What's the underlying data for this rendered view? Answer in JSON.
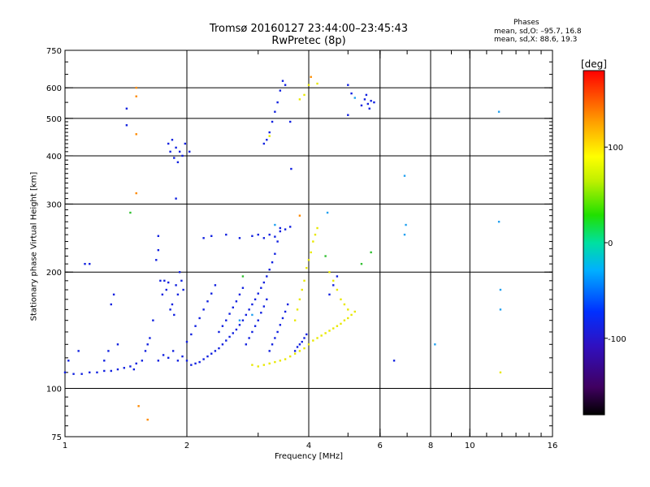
{
  "chart_data": {
    "type": "scatter",
    "title": "Tromsø 20160127 23:44:00–23:45:43",
    "subtitle": "RwPretec (8p)",
    "phase_info": {
      "heading": "Phases",
      "line_o": "mean, sd,O: –95.7, 16.8",
      "line_x": "mean, sd,X:  88.6, 19.3"
    },
    "xlabel": "Frequency [MHz]",
    "ylabel": "Stationary phase Virtual Height [km]",
    "x_scale": "log",
    "y_scale": "log",
    "xlim": [
      1,
      16
    ],
    "ylim": [
      75,
      750
    ],
    "grid": true,
    "x_ticks": [
      1,
      2,
      4,
      6,
      8,
      10,
      16
    ],
    "y_ticks": [
      75,
      100,
      200,
      300,
      400,
      500,
      600,
      750
    ],
    "x_grid": [
      2,
      4,
      6,
      8,
      10
    ],
    "y_grid": [
      100,
      200,
      300,
      400,
      500,
      600
    ],
    "colorbar": {
      "label": "[deg]",
      "min": -180,
      "max": 180,
      "ticks": [
        -100,
        0,
        100
      ],
      "colormap": "rainbow"
    },
    "series": [
      {
        "phase": -95,
        "color": "#1020e0",
        "points": [
          [
            1.0,
            110
          ],
          [
            1.05,
            109
          ],
          [
            1.1,
            109
          ],
          [
            1.15,
            110
          ],
          [
            1.2,
            110
          ],
          [
            1.25,
            111
          ],
          [
            1.3,
            111
          ],
          [
            1.35,
            112
          ],
          [
            1.4,
            113
          ],
          [
            1.45,
            114
          ],
          [
            1.5,
            116
          ],
          [
            1.02,
            118
          ],
          [
            1.08,
            125
          ],
          [
            1.12,
            210
          ],
          [
            1.15,
            210
          ],
          [
            1.25,
            118
          ],
          [
            1.28,
            125
          ],
          [
            1.3,
            165
          ],
          [
            1.32,
            175
          ],
          [
            1.35,
            130
          ],
          [
            1.42,
            480
          ],
          [
            1.42,
            530
          ],
          [
            1.48,
            112
          ],
          [
            1.55,
            118
          ],
          [
            1.58,
            125
          ],
          [
            1.6,
            130
          ],
          [
            1.62,
            135
          ],
          [
            1.65,
            150
          ],
          [
            1.68,
            215
          ],
          [
            1.7,
            228
          ],
          [
            1.7,
            248
          ],
          [
            1.72,
            190
          ],
          [
            1.74,
            175
          ],
          [
            1.76,
            190
          ],
          [
            1.78,
            180
          ],
          [
            1.8,
            188
          ],
          [
            1.82,
            160
          ],
          [
            1.84,
            165
          ],
          [
            1.86,
            155
          ],
          [
            1.88,
            185
          ],
          [
            1.9,
            175
          ],
          [
            1.92,
            200
          ],
          [
            1.94,
            190
          ],
          [
            1.96,
            180
          ],
          [
            1.8,
            430
          ],
          [
            1.82,
            410
          ],
          [
            1.84,
            440
          ],
          [
            1.86,
            395
          ],
          [
            1.88,
            420
          ],
          [
            1.9,
            385
          ],
          [
            1.92,
            410
          ],
          [
            1.95,
            400
          ],
          [
            1.98,
            430
          ],
          [
            2.03,
            410
          ],
          [
            1.88,
            310
          ],
          [
            1.7,
            118
          ],
          [
            1.75,
            122
          ],
          [
            1.8,
            120
          ],
          [
            1.85,
            125
          ],
          [
            1.9,
            118
          ],
          [
            1.95,
            121
          ],
          [
            2.0,
            118
          ],
          [
            2.05,
            115
          ],
          [
            2.1,
            116
          ],
          [
            2.15,
            117
          ],
          [
            2.2,
            119
          ],
          [
            2.25,
            121
          ],
          [
            2.3,
            123
          ],
          [
            2.35,
            125
          ],
          [
            2.4,
            127
          ],
          [
            2.45,
            130
          ],
          [
            2.5,
            133
          ],
          [
            2.55,
            136
          ],
          [
            2.6,
            139
          ],
          [
            2.65,
            142
          ],
          [
            2.7,
            146
          ],
          [
            2.75,
            150
          ],
          [
            2.8,
            155
          ],
          [
            2.85,
            160
          ],
          [
            2.9,
            165
          ],
          [
            2.95,
            170
          ],
          [
            3.0,
            176
          ],
          [
            3.05,
            182
          ],
          [
            3.1,
            188
          ],
          [
            3.15,
            195
          ],
          [
            3.2,
            203
          ],
          [
            3.25,
            212
          ],
          [
            3.3,
            223
          ],
          [
            3.35,
            240
          ],
          [
            3.4,
            260
          ],
          [
            2.0,
            132
          ],
          [
            2.05,
            138
          ],
          [
            2.1,
            145
          ],
          [
            2.15,
            152
          ],
          [
            2.2,
            160
          ],
          [
            2.25,
            168
          ],
          [
            2.3,
            176
          ],
          [
            2.35,
            185
          ],
          [
            2.4,
            140
          ],
          [
            2.45,
            145
          ],
          [
            2.5,
            150
          ],
          [
            2.55,
            156
          ],
          [
            2.6,
            162
          ],
          [
            2.65,
            168
          ],
          [
            2.7,
            175
          ],
          [
            2.75,
            182
          ],
          [
            2.8,
            130
          ],
          [
            2.85,
            135
          ],
          [
            2.9,
            140
          ],
          [
            2.95,
            145
          ],
          [
            3.0,
            150
          ],
          [
            3.05,
            157
          ],
          [
            3.1,
            163
          ],
          [
            3.15,
            170
          ],
          [
            3.2,
            125
          ],
          [
            3.25,
            130
          ],
          [
            3.3,
            135
          ],
          [
            3.35,
            140
          ],
          [
            3.4,
            146
          ],
          [
            3.45,
            152
          ],
          [
            3.5,
            158
          ],
          [
            3.55,
            165
          ],
          [
            2.2,
            245
          ],
          [
            2.3,
            248
          ],
          [
            2.5,
            250
          ],
          [
            2.7,
            245
          ],
          [
            2.9,
            248
          ],
          [
            3.0,
            250
          ],
          [
            3.1,
            245
          ],
          [
            3.2,
            250
          ],
          [
            3.3,
            247
          ],
          [
            3.4,
            255
          ],
          [
            3.5,
            258
          ],
          [
            3.6,
            262
          ],
          [
            3.1,
            430
          ],
          [
            3.15,
            440
          ],
          [
            3.2,
            460
          ],
          [
            3.25,
            490
          ],
          [
            3.3,
            520
          ],
          [
            3.35,
            550
          ],
          [
            3.4,
            590
          ],
          [
            3.45,
            625
          ],
          [
            3.5,
            610
          ],
          [
            3.6,
            490
          ],
          [
            3.62,
            370
          ],
          [
            3.7,
            125
          ],
          [
            3.75,
            128
          ],
          [
            3.8,
            130
          ],
          [
            3.85,
            132
          ],
          [
            3.9,
            135
          ],
          [
            3.95,
            138
          ],
          [
            4.5,
            175
          ],
          [
            4.6,
            185
          ],
          [
            4.7,
            195
          ],
          [
            5.0,
            610
          ],
          [
            5.1,
            580
          ],
          [
            5.4,
            540
          ],
          [
            5.5,
            560
          ],
          [
            5.6,
            545
          ],
          [
            5.7,
            555
          ],
          [
            5.8,
            550
          ],
          [
            5.55,
            575
          ],
          [
            5.65,
            530
          ],
          [
            5.0,
            510
          ],
          [
            6.5,
            118
          ]
        ]
      },
      {
        "phase": -20,
        "color": "#20a0f0",
        "points": [
          [
            2.7,
            150
          ],
          [
            2.9,
            155
          ],
          [
            3.3,
            265
          ],
          [
            4.45,
            285
          ],
          [
            5.2,
            565
          ],
          [
            6.9,
            355
          ],
          [
            6.95,
            265
          ],
          [
            6.9,
            250
          ],
          [
            11.8,
            520
          ],
          [
            11.8,
            270
          ],
          [
            11.9,
            180
          ],
          [
            11.9,
            160
          ],
          [
            8.2,
            130
          ]
        ]
      },
      {
        "phase": 40,
        "color": "#30c030",
        "points": [
          [
            1.45,
            285
          ],
          [
            2.75,
            195
          ],
          [
            4.4,
            220
          ],
          [
            5.4,
            210
          ],
          [
            5.7,
            225
          ]
        ]
      },
      {
        "phase": 100,
        "color": "#e8e800",
        "points": [
          [
            2.9,
            115
          ],
          [
            3.0,
            114
          ],
          [
            3.1,
            115
          ],
          [
            3.2,
            116
          ],
          [
            3.3,
            117
          ],
          [
            3.4,
            118
          ],
          [
            3.5,
            119
          ],
          [
            3.6,
            121
          ],
          [
            3.7,
            123
          ],
          [
            3.8,
            125
          ],
          [
            3.9,
            127
          ],
          [
            4.0,
            130
          ],
          [
            4.1,
            133
          ],
          [
            4.2,
            135
          ],
          [
            4.3,
            137
          ],
          [
            4.4,
            139
          ],
          [
            4.5,
            141
          ],
          [
            4.6,
            143
          ],
          [
            4.7,
            145
          ],
          [
            4.8,
            147
          ],
          [
            4.9,
            150
          ],
          [
            5.0,
            152
          ],
          [
            5.1,
            155
          ],
          [
            5.2,
            158
          ],
          [
            3.7,
            150
          ],
          [
            3.75,
            160
          ],
          [
            3.8,
            170
          ],
          [
            3.85,
            180
          ],
          [
            3.9,
            190
          ],
          [
            3.95,
            205
          ],
          [
            4.0,
            215
          ],
          [
            4.05,
            225
          ],
          [
            4.1,
            240
          ],
          [
            4.15,
            250
          ],
          [
            4.2,
            260
          ],
          [
            4.5,
            200
          ],
          [
            4.6,
            190
          ],
          [
            4.7,
            180
          ],
          [
            4.8,
            170
          ],
          [
            4.9,
            165
          ],
          [
            5.0,
            160
          ],
          [
            3.8,
            560
          ],
          [
            3.9,
            575
          ],
          [
            4.0,
            610
          ],
          [
            4.2,
            615
          ],
          [
            3.2,
            450
          ],
          [
            11.9,
            110
          ]
        ]
      },
      {
        "phase": 140,
        "color": "#ff8a00",
        "points": [
          [
            1.5,
            600
          ],
          [
            1.5,
            570
          ],
          [
            1.5,
            455
          ],
          [
            1.5,
            320
          ],
          [
            1.52,
            90
          ],
          [
            1.6,
            83
          ],
          [
            3.8,
            280
          ],
          [
            4.05,
            640
          ]
        ]
      }
    ]
  }
}
